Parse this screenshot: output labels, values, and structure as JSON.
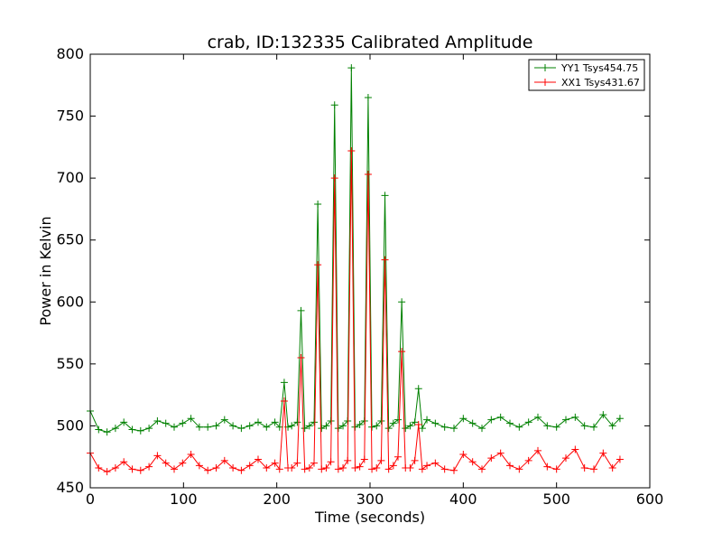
{
  "chart_data": {
    "type": "line",
    "title": "crab, ID:132335 Calibrated Amplitude",
    "xlabel": "Time (seconds)",
    "ylabel": "Power in Kelvin",
    "xlim": [
      0,
      600
    ],
    "ylim": [
      450,
      800
    ],
    "xticks": [
      0,
      100,
      200,
      300,
      400,
      500,
      600
    ],
    "yticks": [
      450,
      500,
      550,
      600,
      650,
      700,
      750,
      800
    ],
    "grid": false,
    "legend_position": "upper right",
    "marker": "+",
    "series": [
      {
        "name": "YY1 Tsys454.75",
        "color": "#008000",
        "x": [
          0,
          9,
          18,
          27,
          36,
          45,
          54,
          63,
          72,
          81,
          90,
          99,
          108,
          117,
          126,
          135,
          144,
          153,
          162,
          171,
          180,
          189,
          198,
          203,
          208,
          212,
          216,
          222,
          226,
          230,
          235,
          240,
          244,
          248,
          253,
          258,
          262,
          266,
          271,
          276,
          280,
          284,
          289,
          294,
          298,
          302,
          307,
          312,
          316,
          320,
          325,
          330,
          334,
          338,
          343,
          348,
          352,
          356,
          361,
          370,
          380,
          390,
          400,
          410,
          420,
          430,
          440,
          450,
          460,
          470,
          480,
          490,
          500,
          510,
          520,
          530,
          540,
          550,
          560,
          568
        ],
        "values": [
          512,
          497,
          495,
          498,
          503,
          497,
          496,
          498,
          504,
          502,
          499,
          502,
          506,
          499,
          499,
          500,
          505,
          500,
          498,
          500,
          503,
          499,
          503,
          499,
          535,
          499,
          500,
          503,
          593,
          498,
          500,
          503,
          679,
          498,
          500,
          504,
          759,
          498,
          500,
          504,
          789,
          499,
          501,
          504,
          765,
          499,
          500,
          504,
          686,
          498,
          502,
          505,
          600,
          498,
          500,
          503,
          530,
          498,
          505,
          502,
          499,
          498,
          506,
          502,
          498,
          505,
          507,
          502,
          499,
          503,
          507,
          500,
          499,
          505,
          507,
          500,
          499,
          509,
          500,
          506
        ]
      },
      {
        "name": "XX1 Tsys431.67",
        "color": "#ff0000",
        "x": [
          0,
          9,
          18,
          27,
          36,
          45,
          54,
          63,
          72,
          81,
          90,
          99,
          108,
          117,
          126,
          135,
          144,
          153,
          162,
          171,
          180,
          189,
          198,
          203,
          208,
          212,
          216,
          222,
          226,
          230,
          235,
          240,
          244,
          248,
          253,
          258,
          262,
          266,
          271,
          276,
          280,
          284,
          289,
          294,
          298,
          302,
          307,
          312,
          316,
          320,
          325,
          330,
          334,
          338,
          343,
          348,
          352,
          356,
          361,
          370,
          380,
          390,
          400,
          410,
          420,
          430,
          440,
          450,
          460,
          470,
          480,
          490,
          500,
          510,
          520,
          530,
          540,
          550,
          560,
          568
        ],
        "values": [
          478,
          466,
          463,
          466,
          471,
          465,
          464,
          467,
          476,
          470,
          465,
          470,
          477,
          468,
          464,
          466,
          472,
          466,
          464,
          468,
          473,
          466,
          470,
          465,
          520,
          466,
          466,
          470,
          555,
          465,
          466,
          470,
          630,
          465,
          466,
          471,
          700,
          465,
          466,
          472,
          722,
          466,
          467,
          473,
          703,
          465,
          466,
          472,
          634,
          465,
          468,
          475,
          560,
          466,
          466,
          472,
          501,
          465,
          468,
          470,
          465,
          464,
          477,
          471,
          465,
          474,
          478,
          468,
          465,
          472,
          480,
          467,
          465,
          474,
          481,
          466,
          465,
          478,
          466,
          473
        ]
      }
    ]
  }
}
